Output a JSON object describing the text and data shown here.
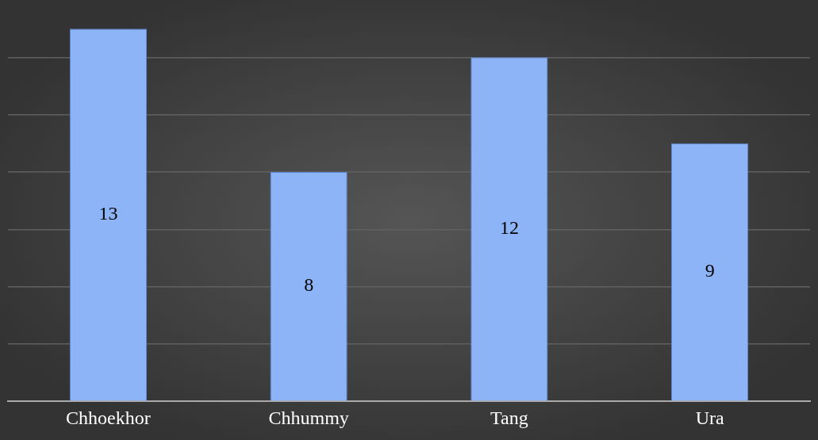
{
  "chart_data": {
    "type": "bar",
    "categories": [
      "Chhoekhor",
      "Chhummy",
      "Tang",
      "Ura"
    ],
    "values": [
      13,
      8,
      12,
      9
    ],
    "color": "#8cb4f7",
    "ylim": [
      0,
      14
    ],
    "yticks": [
      {
        "value": 0,
        "label": null
      },
      {
        "value": 2,
        "label": null
      },
      {
        "value": 4,
        "label": null
      },
      {
        "value": 6,
        "label": null
      },
      {
        "value": 8,
        "label": null
      },
      {
        "value": 10,
        "label": null
      },
      {
        "value": 12,
        "label": null
      }
    ],
    "grid": "y",
    "tick_labels": "x",
    "data_labels": true,
    "legend": false
  }
}
